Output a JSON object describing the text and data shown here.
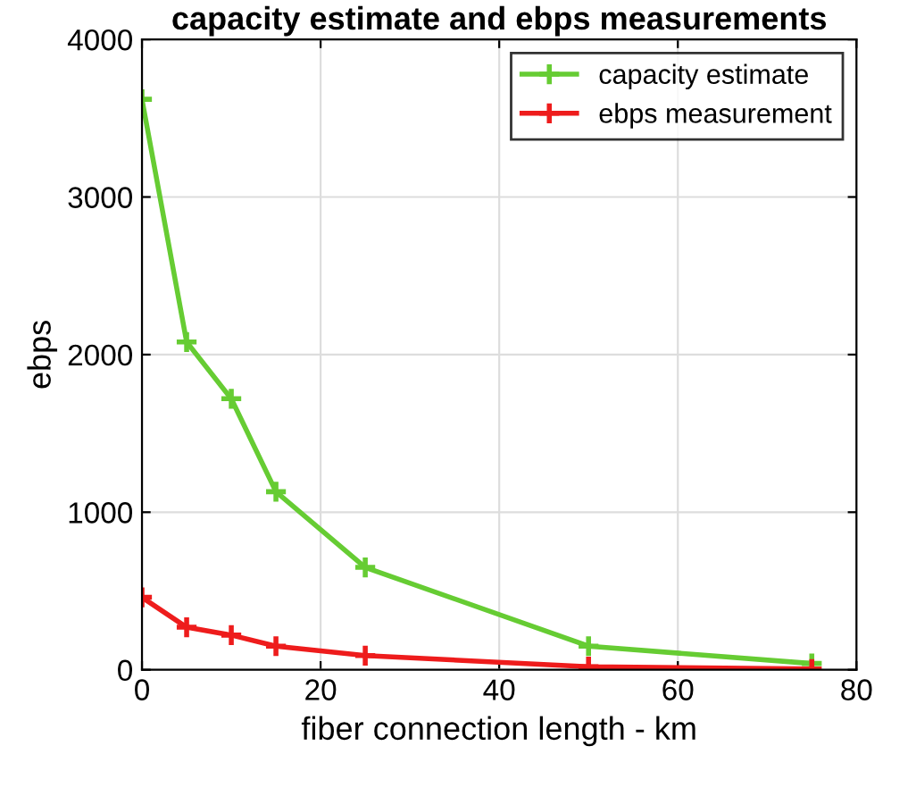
{
  "chart_data": {
    "type": "line",
    "title": "capacity estimate and ebps measurements",
    "xlabel": "fiber connection length - km",
    "ylabel": "ebps",
    "x": [
      0,
      5,
      10,
      15,
      25,
      50,
      75
    ],
    "series": [
      {
        "name": "capacity estimate",
        "color": "#66cc33",
        "values": [
          3620,
          2080,
          1720,
          1130,
          650,
          150,
          40
        ]
      },
      {
        "name": "ebps measurement",
        "color": "#ee1c1c",
        "values": [
          460,
          270,
          220,
          150,
          90,
          20,
          5
        ]
      }
    ],
    "xlim": [
      0,
      80
    ],
    "xticks": [
      0,
      20,
      40,
      60,
      80
    ],
    "ylim": [
      0,
      4000
    ],
    "yticks": [
      0,
      1000,
      2000,
      3000,
      4000
    ],
    "grid": true,
    "legend": "top right",
    "marker": "cross",
    "line_style": "solid"
  }
}
